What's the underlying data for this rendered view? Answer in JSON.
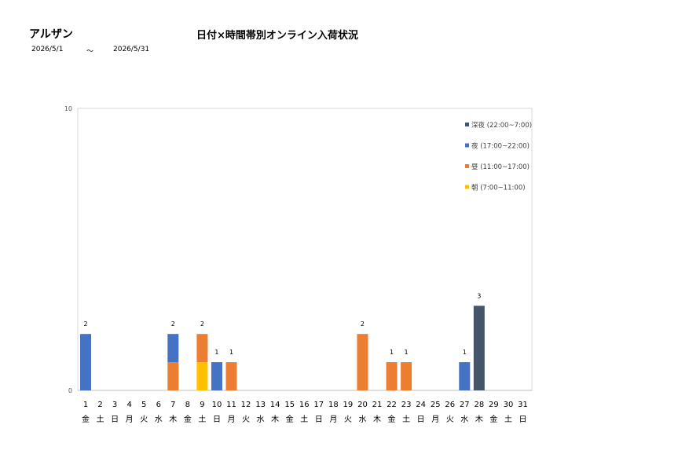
{
  "header": {
    "brand": "アルザン",
    "title": "日付×時間帯別オンライン入荷状況",
    "date_from": "2026/5/1",
    "separator": "～",
    "date_to": "2026/5/31"
  },
  "chart_data": {
    "type": "bar",
    "stacked": true,
    "title": "",
    "xlabel": "",
    "ylabel": "",
    "ylim": [
      0,
      10
    ],
    "yticks": [
      0,
      10
    ],
    "grid": false,
    "legend_position": "top-right",
    "categories": [
      "1",
      "2",
      "3",
      "4",
      "5",
      "6",
      "7",
      "8",
      "9",
      "10",
      "11",
      "12",
      "13",
      "14",
      "15",
      "16",
      "17",
      "18",
      "19",
      "20",
      "21",
      "22",
      "23",
      "24",
      "25",
      "26",
      "27",
      "28",
      "29",
      "30",
      "31"
    ],
    "weekdays": [
      "金",
      "土",
      "日",
      "月",
      "火",
      "水",
      "木",
      "金",
      "土",
      "日",
      "月",
      "火",
      "水",
      "木",
      "金",
      "土",
      "日",
      "月",
      "火",
      "水",
      "木",
      "金",
      "土",
      "日",
      "月",
      "火",
      "水",
      "木",
      "金",
      "土",
      "日"
    ],
    "series": [
      {
        "name": "朝 (7:00~11:00)",
        "color": "#ffc000",
        "values": [
          0,
          0,
          0,
          0,
          0,
          0,
          0,
          0,
          1,
          0,
          0,
          0,
          0,
          0,
          0,
          0,
          0,
          0,
          0,
          0,
          0,
          0,
          0,
          0,
          0,
          0,
          0,
          0,
          0,
          0,
          0
        ]
      },
      {
        "name": "昼 (11:00~17:00)",
        "color": "#ed7d31",
        "values": [
          0,
          0,
          0,
          0,
          0,
          0,
          1,
          0,
          1,
          0,
          1,
          0,
          0,
          0,
          0,
          0,
          0,
          0,
          0,
          2,
          0,
          1,
          1,
          0,
          0,
          0,
          0,
          0,
          0,
          0,
          0
        ]
      },
      {
        "name": "夜 (17:00~22:00)",
        "color": "#4472c4",
        "values": [
          2,
          0,
          0,
          0,
          0,
          0,
          1,
          0,
          0,
          1,
          0,
          0,
          0,
          0,
          0,
          0,
          0,
          0,
          0,
          0,
          0,
          0,
          0,
          0,
          0,
          0,
          1,
          0,
          0,
          0,
          0
        ]
      },
      {
        "name": "深夜 (22:00~7:00)",
        "color": "#44546a",
        "values": [
          0,
          0,
          0,
          0,
          0,
          0,
          0,
          0,
          0,
          0,
          0,
          0,
          0,
          0,
          0,
          0,
          0,
          0,
          0,
          0,
          0,
          0,
          0,
          0,
          0,
          0,
          0,
          3,
          0,
          0,
          0
        ]
      }
    ],
    "totals": [
      2,
      null,
      null,
      null,
      null,
      null,
      2,
      null,
      2,
      1,
      1,
      null,
      null,
      null,
      null,
      null,
      null,
      null,
      null,
      2,
      null,
      1,
      1,
      null,
      null,
      null,
      1,
      3,
      null,
      null,
      null
    ]
  }
}
